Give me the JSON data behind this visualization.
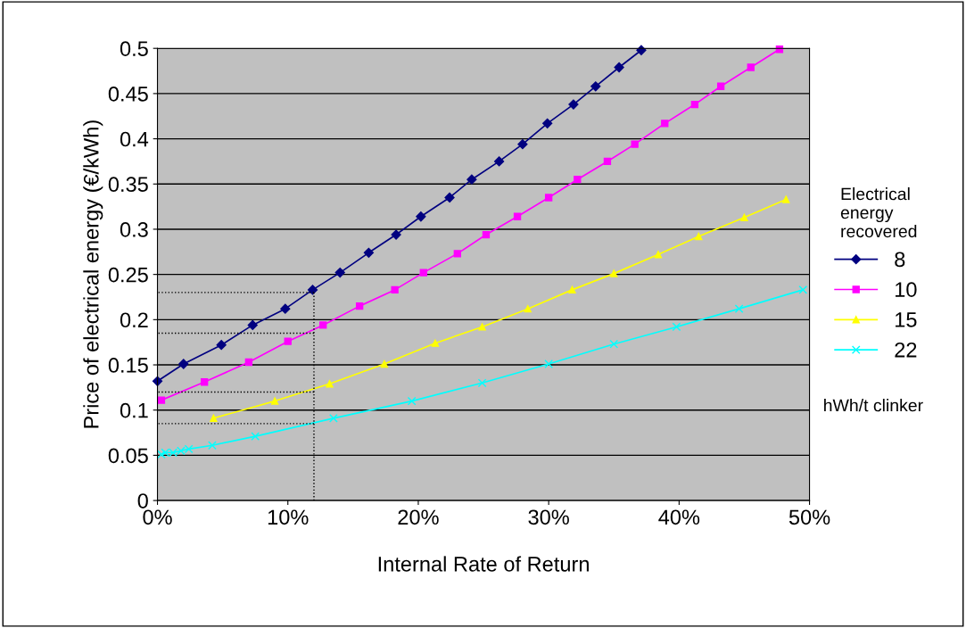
{
  "chart_data": {
    "type": "line",
    "xlabel": "Internal Rate of Return",
    "ylabel": "Price of electrical energy (€/kWh)",
    "legend_title": "Electrical\nenergy\nrecovered",
    "legend": "right",
    "grid": "y",
    "xlim": [
      0,
      50
    ],
    "xticks": [
      {
        "value": 0,
        "label": "0%"
      },
      {
        "value": 10,
        "label": "10%"
      },
      {
        "value": 20,
        "label": "20%"
      },
      {
        "value": 30,
        "label": "30%"
      },
      {
        "value": 40,
        "label": "40%"
      },
      {
        "value": 50,
        "label": "50%"
      }
    ],
    "ylim": [
      0,
      0.5
    ],
    "yticks": [
      0,
      0.05,
      0.1,
      0.15,
      0.2,
      0.25,
      0.3,
      0.35,
      0.4,
      0.45,
      0.5
    ],
    "annotations": [
      "hWh/t clinker"
    ],
    "series": [
      {
        "name": "8",
        "color": "#000080",
        "marker": "diamond",
        "x": [
          0,
          2.0,
          4.9,
          7.3,
          9.8,
          11.9,
          14.0,
          16.2,
          18.3,
          20.2,
          22.4,
          24.1,
          26.2,
          28.0,
          29.9,
          31.9,
          33.6,
          35.4,
          37.1
        ],
        "values": [
          0.132,
          0.151,
          0.172,
          0.194,
          0.212,
          0.233,
          0.252,
          0.274,
          0.294,
          0.314,
          0.335,
          0.355,
          0.375,
          0.394,
          0.417,
          0.438,
          0.458,
          0.479,
          0.498
        ]
      },
      {
        "name": "10",
        "color": "#ff00ff",
        "marker": "square",
        "x": [
          0.3,
          3.6,
          7.0,
          10.0,
          12.7,
          15.5,
          18.2,
          20.4,
          23.0,
          25.2,
          27.6,
          30.0,
          32.2,
          34.5,
          36.6,
          38.9,
          41.2,
          43.2,
          45.5,
          47.7
        ],
        "values": [
          0.111,
          0.131,
          0.153,
          0.176,
          0.194,
          0.215,
          0.233,
          0.252,
          0.273,
          0.294,
          0.314,
          0.335,
          0.355,
          0.375,
          0.394,
          0.417,
          0.438,
          0.458,
          0.479,
          0.499
        ]
      },
      {
        "name": "15",
        "color": "#ffff00",
        "marker": "triangle",
        "x": [
          4.3,
          9.0,
          13.2,
          17.4,
          21.3,
          24.9,
          28.4,
          31.8,
          35.0,
          38.4,
          41.5,
          45.0,
          48.2
        ],
        "values": [
          0.091,
          0.11,
          0.129,
          0.151,
          0.174,
          0.192,
          0.212,
          0.233,
          0.251,
          0.272,
          0.292,
          0.313,
          0.333
        ]
      },
      {
        "name": "22",
        "color": "#00ffff",
        "marker": "cross",
        "x": [
          0.3,
          0.6,
          1.2,
          1.8,
          2.4,
          4.2,
          7.5,
          13.5,
          19.5,
          24.9,
          30.0,
          35.0,
          39.8,
          44.6,
          49.5
        ],
        "values": [
          0.051,
          0.053,
          0.053,
          0.055,
          0.057,
          0.061,
          0.071,
          0.091,
          0.11,
          0.13,
          0.151,
          0.173,
          0.192,
          0.212,
          0.233
        ]
      },
      {
        "color": "#000000",
        "marker": "none",
        "line_style": "dotted",
        "x": [
          12,
          12
        ],
        "values": [
          0,
          0.23
        ]
      },
      {
        "color": "#000000",
        "marker": "none",
        "line_style": "dotted",
        "x": [
          12,
          0
        ],
        "values": [
          0.23,
          0.23
        ]
      },
      {
        "color": "#000000",
        "marker": "none",
        "line_style": "dotted",
        "x": [
          12,
          0
        ],
        "values": [
          0.185,
          0.185
        ]
      },
      {
        "color": "#000000",
        "marker": "none",
        "line_style": "dotted",
        "x": [
          12,
          0
        ],
        "values": [
          0.12,
          0.12
        ]
      },
      {
        "color": "#000000",
        "marker": "none",
        "line_style": "dotted",
        "x": [
          12,
          0
        ],
        "values": [
          0.085,
          0.085
        ]
      }
    ]
  }
}
